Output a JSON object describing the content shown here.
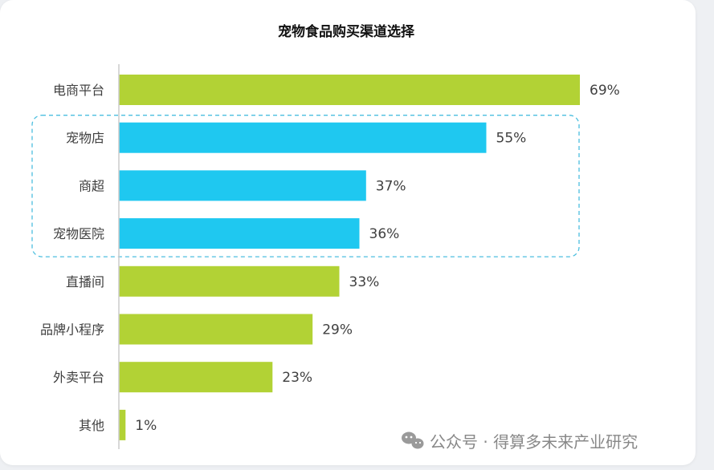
{
  "chart_data": {
    "type": "bar",
    "orientation": "horizontal",
    "title": "宠物食品购买渠道选择",
    "categories": [
      "电商平台",
      "宠物店",
      "商超",
      "宠物医院",
      "直播间",
      "品牌小程序",
      "外卖平台",
      "其他"
    ],
    "values": [
      69,
      55,
      37,
      36,
      33,
      29,
      23,
      1
    ],
    "value_labels": [
      "69%",
      "55%",
      "37%",
      "36%",
      "33%",
      "29%",
      "23%",
      "1%"
    ],
    "unit": "%",
    "xlim": [
      0,
      100
    ],
    "highlighted_categories": [
      "宠物店",
      "商超",
      "宠物医院"
    ],
    "grid": false,
    "xlabel": "",
    "ylabel": ""
  },
  "colors": {
    "default_bar": "#b2d235",
    "highlight_bar": "#1fc8f0",
    "highlight_box": "#4bbedf",
    "axis": "#cccccc",
    "wechat_icon": "#9a9a9a"
  },
  "watermark": {
    "text": "公众号 · 得算多未来产业研究",
    "icon": "wechat-icon"
  }
}
